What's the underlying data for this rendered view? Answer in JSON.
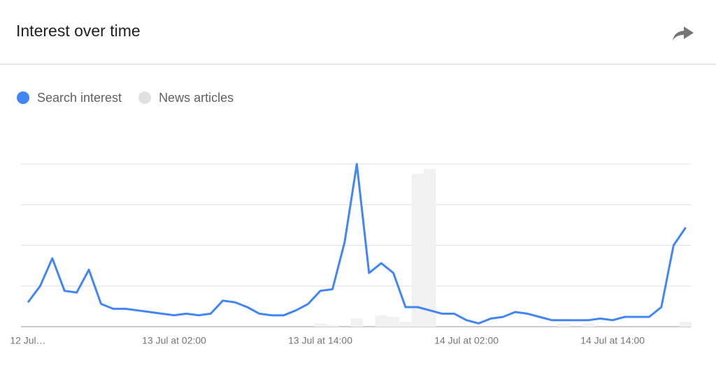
{
  "chart_data": {
    "type": "line",
    "title": "Interest over time",
    "categories": [
      "12 Jul…",
      null,
      null,
      null,
      null,
      null,
      null,
      null,
      null,
      null,
      null,
      null,
      "13 Jul at 02:00",
      null,
      null,
      null,
      null,
      null,
      null,
      null,
      null,
      null,
      null,
      null,
      "13 Jul at 14:00",
      null,
      null,
      null,
      null,
      null,
      null,
      null,
      null,
      null,
      null,
      null,
      "14 Jul at 02:00",
      null,
      null,
      null,
      null,
      null,
      null,
      null,
      null,
      null,
      null,
      null,
      "14 Jul at 14:00",
      null,
      null,
      null,
      null,
      null,
      null
    ],
    "series": [
      {
        "name": "News articles",
        "type": "bar",
        "color": "#f1f1f1",
        "legend_color": "#e0e0e0",
        "values": [
          0,
          0,
          0,
          0,
          0,
          0,
          0,
          0,
          0,
          0,
          0,
          0,
          0,
          0,
          0,
          0,
          0,
          0,
          0,
          0,
          0,
          0,
          0,
          0,
          2,
          1,
          0,
          5,
          0,
          7,
          6,
          3,
          94,
          97,
          0,
          0,
          0,
          0,
          0,
          0,
          0,
          0,
          0,
          0,
          2,
          0,
          2,
          0,
          0,
          0,
          0,
          0,
          0,
          0,
          3
        ]
      },
      {
        "name": "Search interest",
        "type": "line",
        "color": "#4285f4",
        "values": [
          15,
          25,
          42,
          22,
          21,
          35,
          14,
          11,
          11,
          10,
          9,
          8,
          7,
          8,
          7,
          8,
          16,
          15,
          12,
          8,
          7,
          7,
          10,
          14,
          22,
          23,
          52,
          100,
          33,
          39,
          33,
          12,
          12,
          10,
          8,
          8,
          4,
          2,
          5,
          6,
          9,
          8,
          6,
          4,
          4,
          4,
          4,
          5,
          4,
          6,
          6,
          6,
          12,
          50,
          61
        ]
      }
    ],
    "legend_order": [
      1,
      0
    ],
    "ylim": [
      0,
      100
    ],
    "yticks": [
      0,
      25,
      50,
      75,
      100
    ],
    "grid": true
  }
}
